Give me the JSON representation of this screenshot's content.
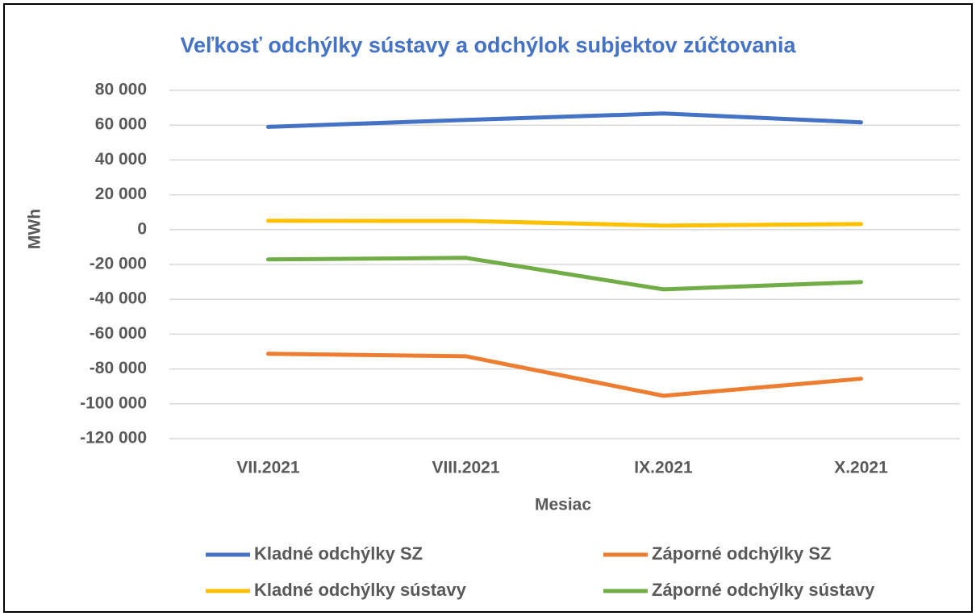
{
  "chart_data": {
    "type": "line",
    "title": "Veľkosť odchýlky sústavy a odchýlok subjektov zúčtovania",
    "x_label": "Mesiac",
    "y_label": "MWh",
    "categories": [
      "VII.2021",
      "VIII.2021",
      "IX.2021",
      "X.2021"
    ],
    "series": [
      {
        "name": "Kladné odchýlky SZ",
        "color": "#4472c4",
        "values": [
          59000,
          63000,
          66700,
          61600
        ]
      },
      {
        "name": "Záporné odchýlky SZ",
        "color": "#ed7d31",
        "values": [
          -71300,
          -72700,
          -95400,
          -85600
        ]
      },
      {
        "name": "Kladné odchýlky sústavy",
        "color": "#ffc000",
        "values": [
          5100,
          5000,
          2300,
          3200
        ]
      },
      {
        "name": "Záporné odchýlky sústavy",
        "color": "#70ad47",
        "values": [
          -17100,
          -16200,
          -34300,
          -30100
        ]
      }
    ],
    "ylim": [
      -120000,
      80000
    ],
    "yticks": [
      {
        "value": 80000,
        "label": "80 000"
      },
      {
        "value": 60000,
        "label": "60 000"
      },
      {
        "value": 40000,
        "label": "40 000"
      },
      {
        "value": 20000,
        "label": "20 000"
      },
      0,
      {
        "value": -20000,
        "label": "-20 000"
      },
      {
        "value": -40000,
        "label": "-40 000"
      },
      {
        "value": -60000,
        "label": "-60 000"
      },
      {
        "value": -80000,
        "label": "-80 000"
      },
      {
        "value": -100000,
        "label": "-100 000"
      },
      {
        "value": -120000,
        "label": "-120 000"
      }
    ],
    "grid": true
  }
}
